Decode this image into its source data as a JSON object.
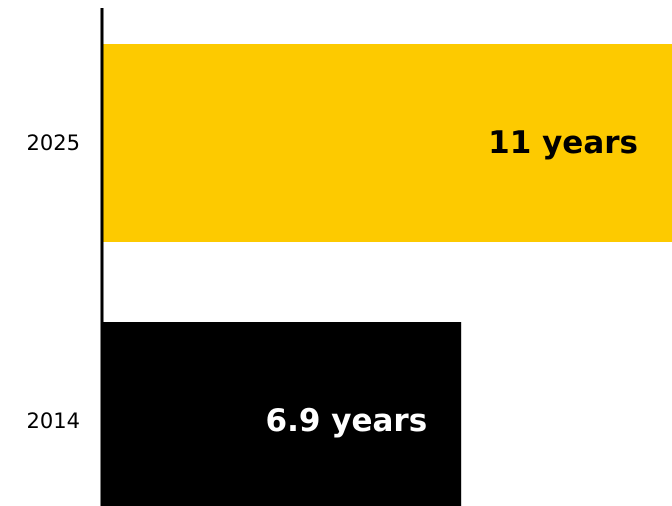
{
  "chart_data": {
    "type": "bar",
    "orientation": "horizontal",
    "categories": [
      "2025",
      "2014"
    ],
    "values": [
      11,
      6.9
    ],
    "value_labels": [
      "11 years",
      "6.9 years"
    ],
    "colors": [
      "#FDCA00",
      "#000000"
    ],
    "label_colors": [
      "#000000",
      "#FFFFFF"
    ],
    "title": "",
    "xlabel": "",
    "ylabel": "",
    "xlim": [
      0,
      11.2
    ],
    "grid": false,
    "legend": "none"
  }
}
